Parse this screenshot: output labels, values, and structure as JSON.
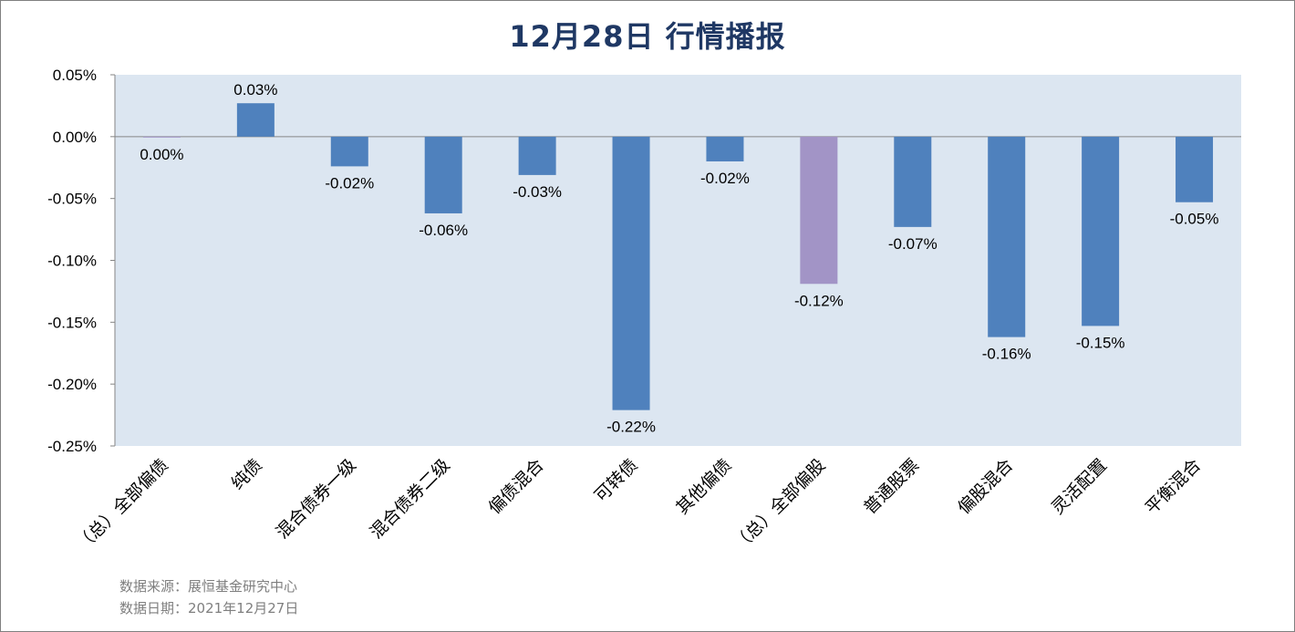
{
  "header": {
    "title": "12月28日  行情播报"
  },
  "chart_data": {
    "type": "bar",
    "categories": [
      "（总）全部偏债",
      "纯债",
      "混合债券一级",
      "混合债券二级",
      "偏债混合",
      "可转债",
      "其他偏债",
      "（总）全部偏股",
      "普通股票",
      "偏股混合",
      "灵活配置",
      "平衡混合"
    ],
    "values": [
      -0.0005,
      0.027,
      -0.024,
      -0.062,
      -0.031,
      -0.221,
      -0.02,
      -0.119,
      -0.073,
      -0.162,
      -0.153,
      -0.053
    ],
    "data_labels": [
      "0.00%",
      "0.03%",
      "-0.02%",
      "-0.06%",
      "-0.03%",
      "-0.22%",
      "-0.02%",
      "-0.12%",
      "-0.07%",
      "-0.16%",
      "-0.15%",
      "-0.05%"
    ],
    "bar_colors": [
      "#a294c6",
      "#4f81bd",
      "#4f81bd",
      "#4f81bd",
      "#4f81bd",
      "#4f81bd",
      "#4f81bd",
      "#a294c6",
      "#4f81bd",
      "#4f81bd",
      "#4f81bd",
      "#4f81bd"
    ],
    "unit": "%",
    "ylim": [
      -0.25,
      0.05
    ],
    "yticks": [
      0.05,
      0.0,
      -0.05,
      -0.1,
      -0.15,
      -0.2,
      -0.25
    ],
    "ytick_labels": [
      "0.05%",
      "0.00%",
      "-0.05%",
      "-0.10%",
      "-0.15%",
      "-0.20%",
      "-0.25%"
    ],
    "plot_background": "#dce6f1",
    "grid": false,
    "legend": "none"
  },
  "footer": {
    "source": "数据来源：展恒基金研究中心",
    "date": "数据日期：2021年12月27日"
  }
}
